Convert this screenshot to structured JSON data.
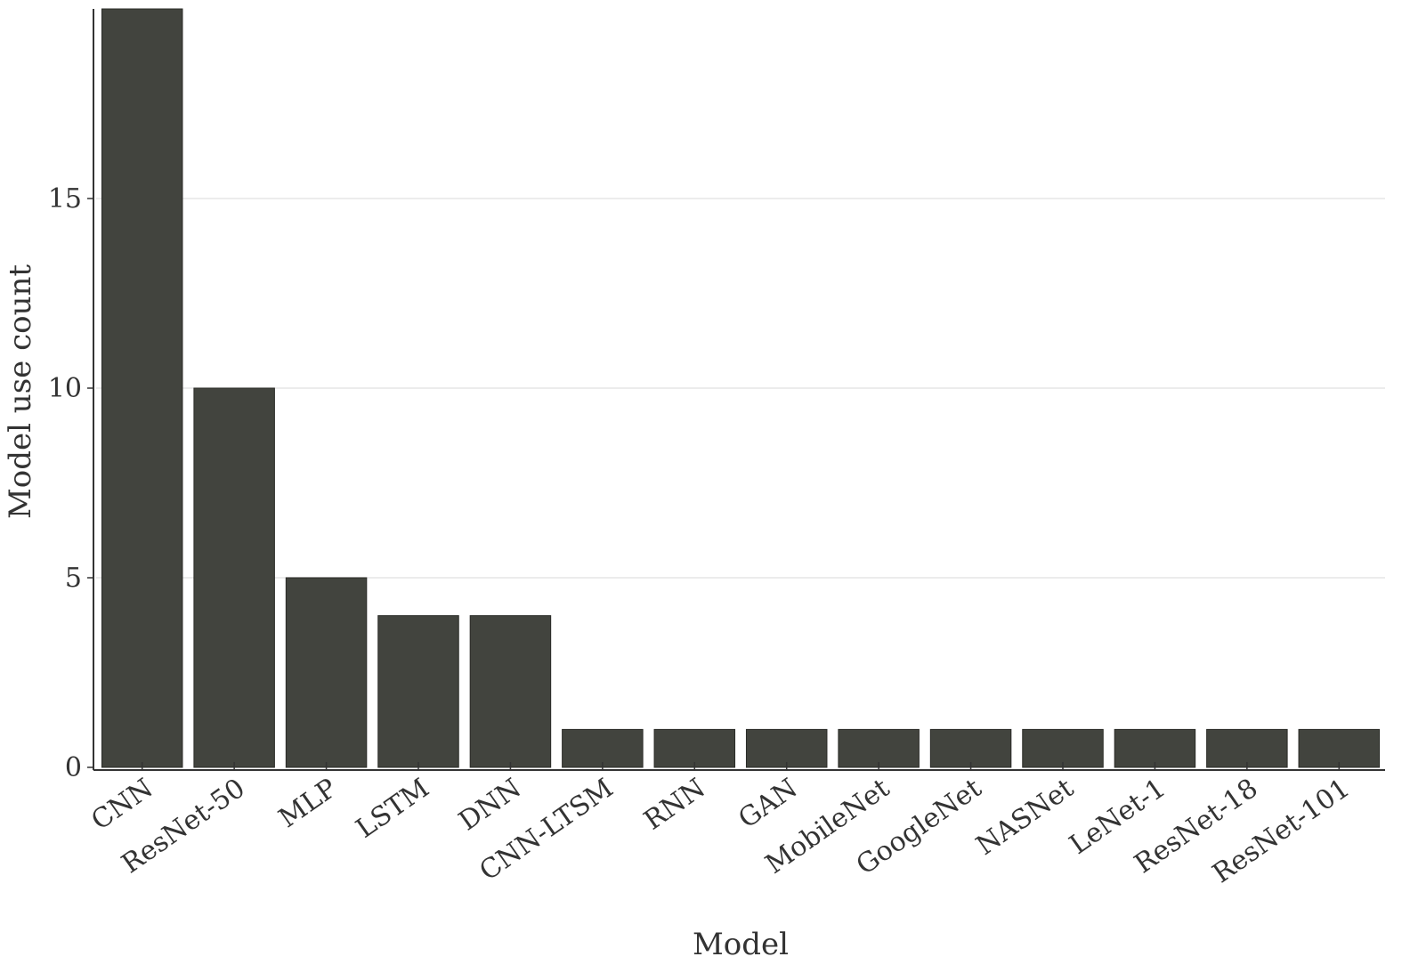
{
  "chart_data": {
    "type": "bar",
    "title": "",
    "xlabel": "Model",
    "ylabel": "Model use count",
    "categories": [
      "CNN",
      "ResNet-50",
      "MLP",
      "LSTM",
      "DNN",
      "CNN-LTSM",
      "RNN",
      "GAN",
      "MobileNet",
      "GoogleNet",
      "NASNet",
      "LeNet-1",
      "ResNet-18",
      "ResNet-101"
    ],
    "values": [
      20,
      10,
      5,
      4,
      4,
      1,
      1,
      1,
      1,
      1,
      1,
      1,
      1,
      1
    ],
    "ylim": [
      0,
      20
    ],
    "yticks": [
      0,
      5,
      10,
      15
    ],
    "grid": "horizontal",
    "bar_color": "#42443e",
    "grid_color": "#e6e6e6",
    "axis_color": "#333333"
  }
}
